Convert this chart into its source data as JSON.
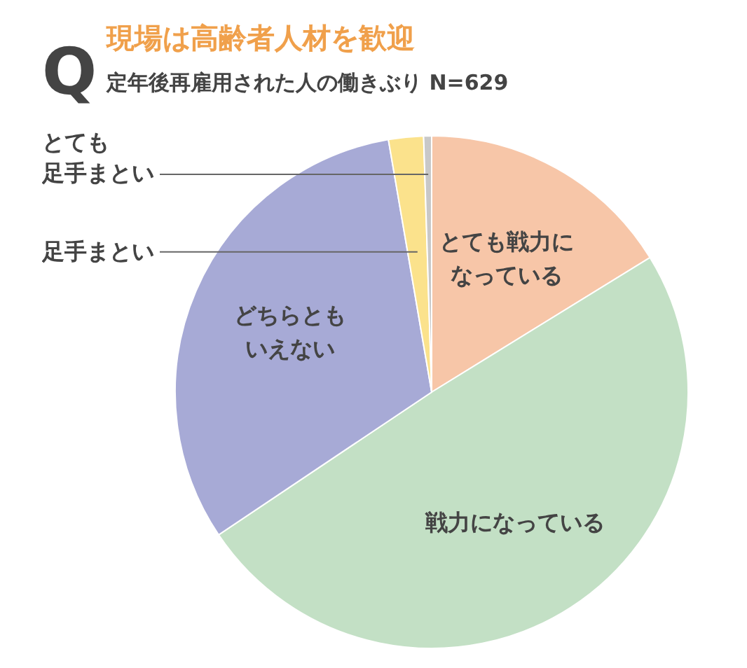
{
  "chart_data": {
    "type": "pie",
    "title": "現場は高齢者人材を歓迎",
    "subtitle": "定年後再雇用された人の働きぶり N=629",
    "annotations": [
      "Q"
    ],
    "categories": [
      "とても戦力になっている",
      "戦力になっている",
      "どちらともいえない",
      "足手まとい",
      "とても足手まとい"
    ],
    "values": [
      16.2,
      49.4,
      31.7,
      2.2,
      0.5
    ],
    "colors": [
      "#f7c6a8",
      "#c3e0c5",
      "#a7aad6",
      "#fbe28c",
      "#c8c8c8"
    ],
    "legend": false
  }
}
